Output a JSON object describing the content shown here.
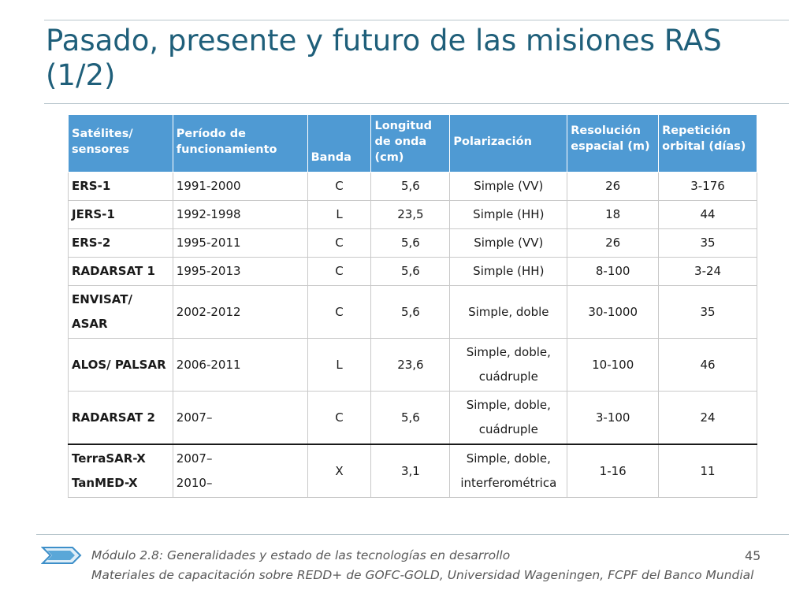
{
  "slide": {
    "title": "Pasado, presente y futuro de las misiones RAS (1/2)"
  },
  "table": {
    "headers": {
      "satellite": "Satélites/ sensores",
      "period": "Período de funcionamiento",
      "band": "Banda",
      "wavelength": "Longitud de onda (cm)",
      "polarization": "Polarización",
      "resolution": "Resolución espacial (m)",
      "repeat": "Repetición orbital (días)"
    },
    "rows": [
      {
        "satellite": "ERS-1",
        "period": "1991-2000",
        "band": "C",
        "wavelength": "5,6",
        "polarization": "Simple (VV)",
        "resolution": "26",
        "repeat": "3-176"
      },
      {
        "satellite": "JERS-1",
        "period": "1992-1998",
        "band": "L",
        "wavelength": "23,5",
        "polarization": "Simple (HH)",
        "resolution": "18",
        "repeat": "44"
      },
      {
        "satellite": "ERS-2",
        "period": "1995-2011",
        "band": "C",
        "wavelength": "5,6",
        "polarization": "Simple (VV)",
        "resolution": "26",
        "repeat": "35"
      },
      {
        "satellite": "RADARSAT 1",
        "period": "1995-2013",
        "band": "C",
        "wavelength": "5,6",
        "polarization": "Simple (HH)",
        "resolution": "8-100",
        "repeat": "3-24"
      },
      {
        "satellite": "ENVISAT/ ASAR",
        "period": "2002-2012",
        "band": "C",
        "wavelength": "5,6",
        "polarization": "Simple, doble",
        "resolution": "30-1000",
        "repeat": "35"
      },
      {
        "satellite": "ALOS/ PALSAR",
        "period": "2006-2011",
        "band": "L",
        "wavelength": "23,6",
        "polarization": "Simple, doble, cuádruple",
        "resolution": "10-100",
        "repeat": "46"
      },
      {
        "satellite": "RADARSAT 2",
        "period": "2007–",
        "band": "C",
        "wavelength": "5,6",
        "polarization": "Simple, doble, cuádruple",
        "resolution": "3-100",
        "repeat": "24"
      }
    ],
    "last_row": {
      "satellite_a": "TerraSAR-X",
      "satellite_b": "TanMED-X",
      "period_a": "2007–",
      "period_b": "2010–",
      "band": "X",
      "wavelength": "3,1",
      "polarization_a": "Simple, doble,",
      "polarization_b": "interferométrica",
      "resolution": "1-16",
      "repeat": "11"
    }
  },
  "footer": {
    "module": "Módulo 2.8: Generalidades y estado de las tecnologías en desarrollo",
    "credits": "Materiales de capacitación sobre REDD+ de GOFC-GOLD, Universidad Wageningen, FCPF del Banco Mundial",
    "page_number": "45"
  },
  "colors": {
    "title": "#1f5f7a",
    "header_bg": "#4f9ad3",
    "chevron": "#5aa7d8"
  }
}
